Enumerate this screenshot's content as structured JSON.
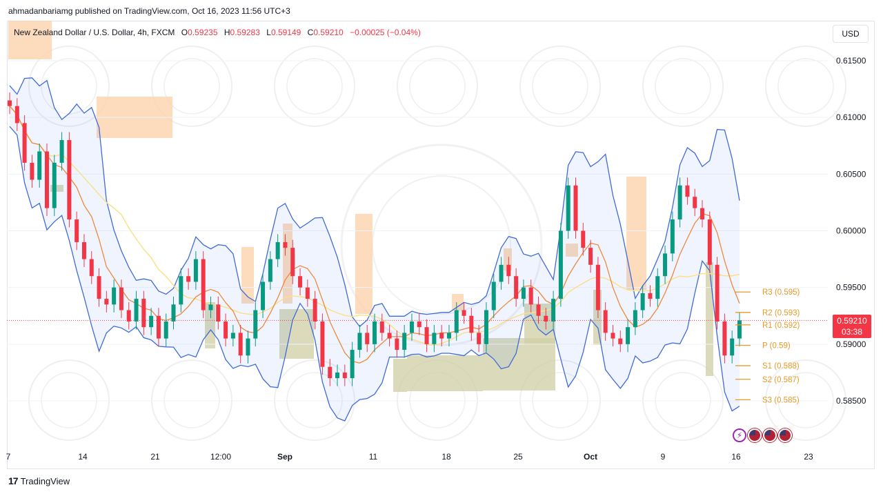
{
  "header": {
    "published": "ahmadanbariamg published on TradingView.com, Oct 16, 2023 11:56 UTC+3"
  },
  "legend": {
    "symbol": "New Zealand Dollar / U.S. Dollar, 4h, FXCM",
    "o_label": "O",
    "o_value": "0.59235",
    "h_label": "H",
    "h_value": "0.59283",
    "l_label": "L",
    "l_value": "0.59149",
    "c_label": "C",
    "c_value": "0.59210",
    "change": "−0.00025 (−0.04%)"
  },
  "currency_button": "USD",
  "price_badge": {
    "price": "0.59210",
    "countdown": "03:38",
    "color": "#f23645"
  },
  "footer": {
    "brand": "TradingView",
    "logo": "tradingview-logo-icon"
  },
  "icons": [
    "bolt-icon",
    "us-flag-icon",
    "us-flag-icon",
    "us-flag-icon"
  ],
  "chart_data": {
    "type": "candlestick",
    "y_ticks": [
      "0.61500",
      "0.61000",
      "0.60500",
      "0.60000",
      "0.59500",
      "0.59000",
      "0.58500"
    ],
    "ylim": [
      0.5815,
      0.6185
    ],
    "x_ticks": [
      "7",
      "14",
      "21",
      "12:00",
      "Sep",
      "11",
      "18",
      "25",
      "Oct",
      "9",
      "16",
      "23"
    ],
    "x_ticks_bold": [
      "Sep",
      "Oct"
    ],
    "last_price": 0.5921,
    "pivot_levels": [
      {
        "label": "R3 (0.595)",
        "value": 0.5946
      },
      {
        "label": "R2 (0.593)",
        "value": 0.5928
      },
      {
        "label": "R1 (0.592)",
        "value": 0.5917
      },
      {
        "label": "P (0.59)",
        "value": 0.5899
      },
      {
        "label": "S1 (0.588)",
        "value": 0.5881
      },
      {
        "label": "S2 (0.587)",
        "value": 0.5869
      },
      {
        "label": "S3 (0.585)",
        "value": 0.5851
      }
    ],
    "colors": {
      "up": "#089981",
      "down": "#f23645",
      "band": "#2962ff",
      "ma_fast": "#f57c00",
      "ma_slow": "#fbc02d",
      "pivot": "#e89a26",
      "zone_orange": "#fbd3ad",
      "zone_olive": "#cfcfa6"
    },
    "closes": [
      0.611,
      0.6095,
      0.606,
      0.6045,
      0.607,
      0.602,
      0.606,
      0.608,
      0.601,
      0.599,
      0.5975,
      0.596,
      0.594,
      0.5935,
      0.595,
      0.593,
      0.592,
      0.594,
      0.5915,
      0.5925,
      0.5905,
      0.592,
      0.5935,
      0.596,
      0.5955,
      0.5975,
      0.593,
      0.5935,
      0.592,
      0.5905,
      0.591,
      0.589,
      0.5905,
      0.593,
      0.5955,
      0.5975,
      0.599,
      0.5985,
      0.596,
      0.595,
      0.594,
      0.592,
      0.588,
      0.587,
      0.5875,
      0.587,
      0.5895,
      0.591,
      0.59,
      0.592,
      0.591,
      0.5905,
      0.5895,
      0.591,
      0.592,
      0.5915,
      0.59,
      0.591,
      0.5905,
      0.591,
      0.593,
      0.5925,
      0.591,
      0.59,
      0.593,
      0.5955,
      0.597,
      0.596,
      0.594,
      0.595,
      0.5935,
      0.5925,
      0.592,
      0.594,
      0.6,
      0.604,
      0.6,
      0.5985,
      0.597,
      0.593,
      0.591,
      0.5905,
      0.59,
      0.5915,
      0.593,
      0.5945,
      0.594,
      0.596,
      0.598,
      0.601,
      0.604,
      0.603,
      0.602,
      0.601,
      0.597,
      0.592,
      0.589,
      0.5905,
      0.5921
    ]
  }
}
